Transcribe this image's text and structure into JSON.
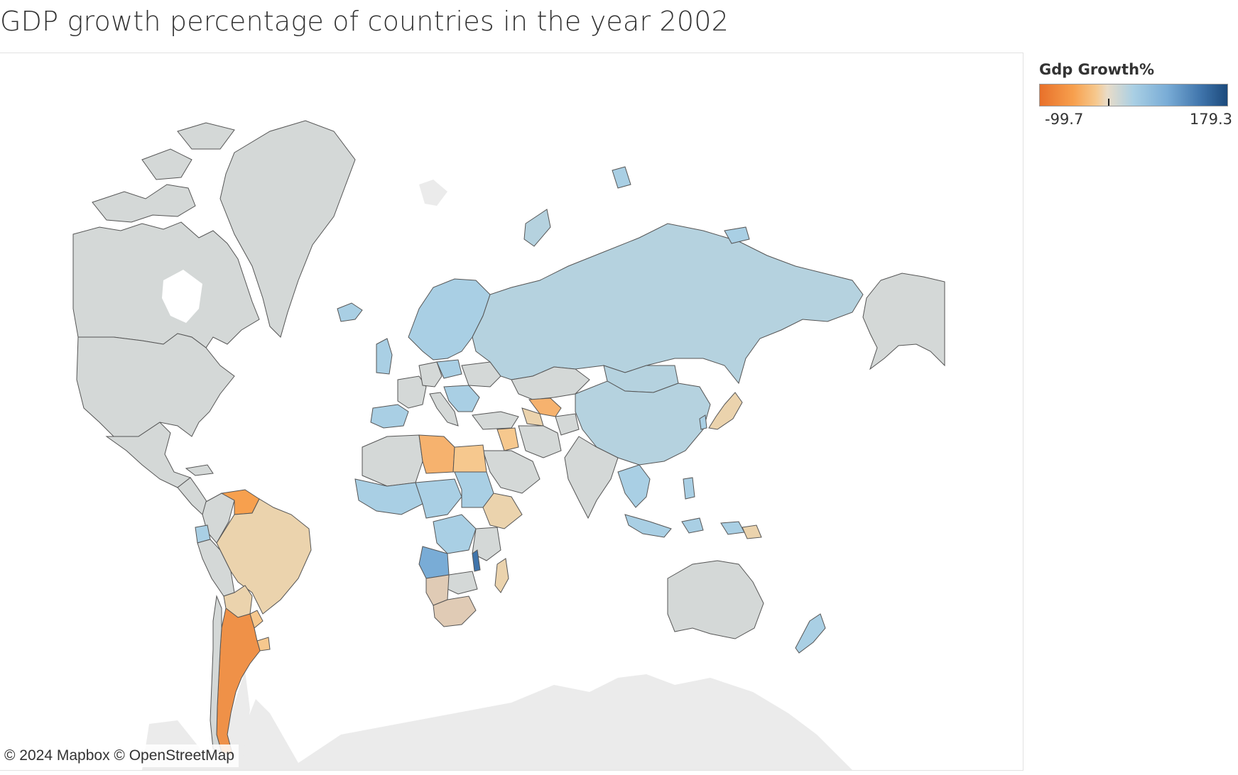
{
  "title": "GDP growth percentage of countries in the year 2002",
  "legend": {
    "title": "Gdp Growth%",
    "min_label": "-99.7",
    "max_label": "179.3",
    "colors": [
      "#e8702a",
      "#f7a04e",
      "#f6c88e",
      "#e9dcc8",
      "#a9cfe4",
      "#79acd6",
      "#3f74ab",
      "#1c4a7c"
    ]
  },
  "attribution": "© 2024 Mapbox © OpenStreetMap",
  "map_colors": {
    "no_data": "#d4d8d7",
    "land_background": "#ebebeb",
    "border": "#555555"
  }
}
